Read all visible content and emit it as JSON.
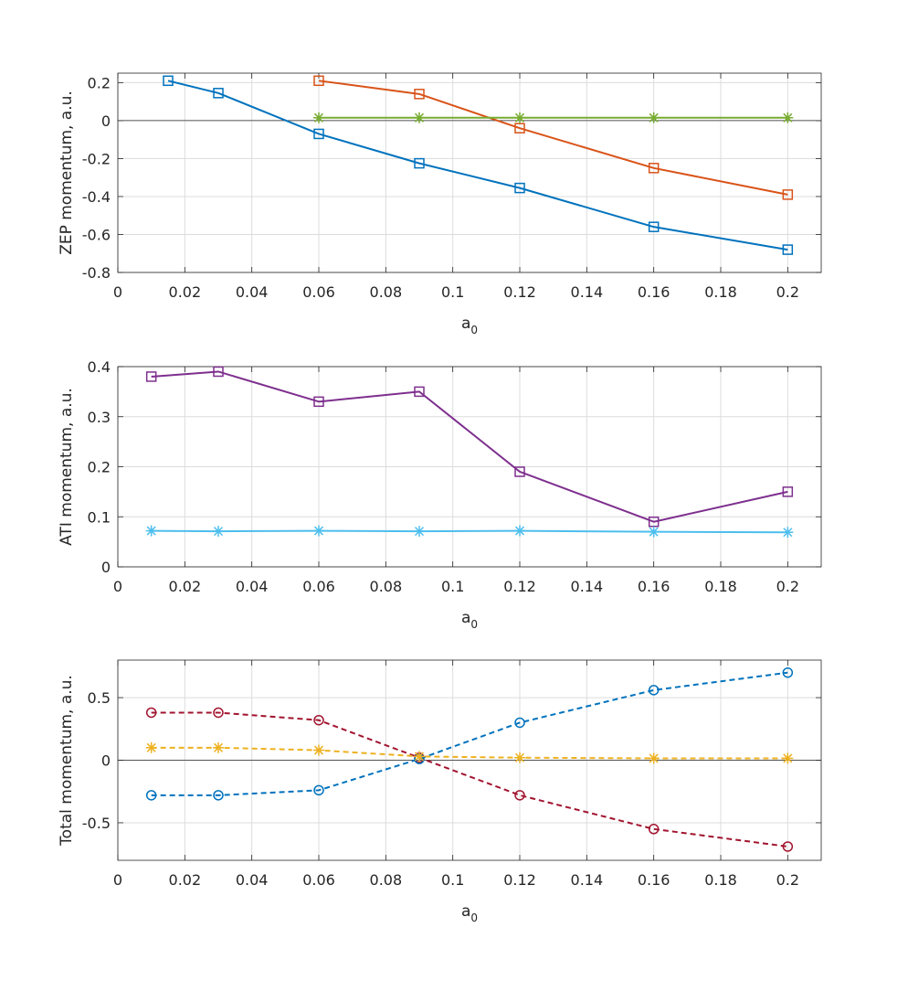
{
  "figure": {
    "background": "#ffffff"
  },
  "chart_data": [
    {
      "type": "line",
      "xlabel": "a",
      "xlabel_sub": "0",
      "ylabel": "ZEP momentum, a.u.",
      "xlim": [
        0,
        0.21
      ],
      "ylim": [
        -0.8,
        0.25
      ],
      "xticks": [
        0,
        0.02,
        0.04,
        0.06,
        0.08,
        0.1,
        0.12,
        0.14,
        0.16,
        0.18,
        0.2
      ],
      "xtick_labels": [
        "0",
        "0.02",
        "0.04",
        "0.06",
        "0.08",
        "0.1",
        "0.12",
        "0.14",
        "0.16",
        "0.18",
        "0.2"
      ],
      "yticks": [
        -0.8,
        -0.6,
        -0.4,
        -0.2,
        0,
        0.2
      ],
      "ytick_labels": [
        "-0.8",
        "-0.6",
        "-0.4",
        "-0.2",
        "0",
        "0.2"
      ],
      "grid": true,
      "zero_line": true,
      "series": [
        {
          "name": "blue squares",
          "color": "#0072BD",
          "marker": "square",
          "dashed": false,
          "x": [
            0.015,
            0.03,
            0.06,
            0.09,
            0.12,
            0.16,
            0.2
          ],
          "y": [
            0.21,
            0.145,
            -0.07,
            -0.225,
            -0.355,
            -0.56,
            -0.68
          ]
        },
        {
          "name": "orange squares",
          "color": "#D95319",
          "marker": "square",
          "dashed": false,
          "x": [
            0.06,
            0.09,
            0.12,
            0.16,
            0.2
          ],
          "y": [
            0.21,
            0.14,
            -0.04,
            -0.25,
            -0.39
          ]
        },
        {
          "name": "green stars",
          "color": "#77AC30",
          "marker": "star",
          "dashed": false,
          "x": [
            0.06,
            0.09,
            0.12,
            0.16,
            0.2
          ],
          "y": [
            0.015,
            0.015,
            0.015,
            0.015,
            0.015
          ]
        }
      ]
    },
    {
      "type": "line",
      "xlabel": "a",
      "xlabel_sub": "0",
      "ylabel": "ATI momentum, a.u.",
      "xlim": [
        0,
        0.21
      ],
      "ylim": [
        0,
        0.4
      ],
      "xticks": [
        0,
        0.02,
        0.04,
        0.06,
        0.08,
        0.1,
        0.12,
        0.14,
        0.16,
        0.18,
        0.2
      ],
      "xtick_labels": [
        "0",
        "0.02",
        "0.04",
        "0.06",
        "0.08",
        "0.1",
        "0.12",
        "0.14",
        "0.16",
        "0.18",
        "0.2"
      ],
      "yticks": [
        0,
        0.1,
        0.2,
        0.3,
        0.4
      ],
      "ytick_labels": [
        "0",
        "0.1",
        "0.2",
        "0.3",
        "0.4"
      ],
      "grid": true,
      "zero_line": false,
      "series": [
        {
          "name": "purple squares",
          "color": "#7E2F8E",
          "marker": "square",
          "dashed": false,
          "x": [
            0.01,
            0.03,
            0.06,
            0.09,
            0.12,
            0.16,
            0.2
          ],
          "y": [
            0.38,
            0.39,
            0.33,
            0.35,
            0.19,
            0.09,
            0.15
          ]
        },
        {
          "name": "cyan stars",
          "color": "#4DBEEE",
          "marker": "star",
          "dashed": false,
          "x": [
            0.01,
            0.03,
            0.06,
            0.09,
            0.12,
            0.16,
            0.2
          ],
          "y": [
            0.072,
            0.071,
            0.072,
            0.071,
            0.072,
            0.07,
            0.069
          ]
        }
      ]
    },
    {
      "type": "line",
      "xlabel": "a",
      "xlabel_sub": "0",
      "ylabel": "Total momentum, a.u.",
      "xlim": [
        0,
        0.21
      ],
      "ylim": [
        -0.8,
        0.8
      ],
      "xticks": [
        0,
        0.02,
        0.04,
        0.06,
        0.08,
        0.1,
        0.12,
        0.14,
        0.16,
        0.18,
        0.2
      ],
      "xtick_labels": [
        "0",
        "0.02",
        "0.04",
        "0.06",
        "0.08",
        "0.1",
        "0.12",
        "0.14",
        "0.16",
        "0.18",
        "0.2"
      ],
      "yticks": [
        -0.5,
        0,
        0.5
      ],
      "ytick_labels": [
        "-0.5",
        "0",
        "0.5"
      ],
      "grid": true,
      "zero_line": true,
      "series": [
        {
          "name": "dark red circles",
          "color": "#A2142F",
          "marker": "circle",
          "dashed": true,
          "x": [
            0.01,
            0.03,
            0.06,
            0.09,
            0.12,
            0.16,
            0.2
          ],
          "y": [
            0.38,
            0.38,
            0.32,
            0.02,
            -0.28,
            -0.55,
            -0.69
          ]
        },
        {
          "name": "blue circles",
          "color": "#0072BD",
          "marker": "circle",
          "dashed": true,
          "x": [
            0.01,
            0.03,
            0.06,
            0.09,
            0.12,
            0.16,
            0.2
          ],
          "y": [
            -0.28,
            -0.28,
            -0.24,
            0.01,
            0.3,
            0.56,
            0.7
          ]
        },
        {
          "name": "yellow stars",
          "color": "#EDB120",
          "marker": "star",
          "dashed": true,
          "x": [
            0.01,
            0.03,
            0.06,
            0.09,
            0.12,
            0.16,
            0.2
          ],
          "y": [
            0.1,
            0.1,
            0.08,
            0.03,
            0.02,
            0.015,
            0.015
          ]
        }
      ]
    }
  ]
}
